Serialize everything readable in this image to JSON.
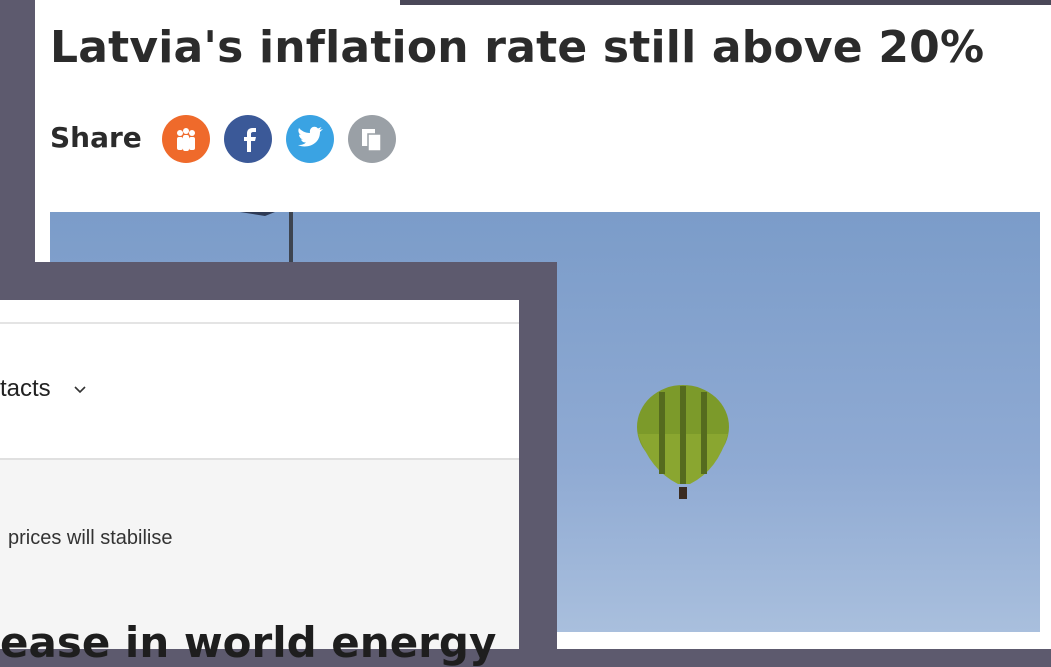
{
  "article": {
    "title": "Latvia's inflation rate still above 20%",
    "share_label": "Share"
  },
  "overlay": {
    "menu_item": "tacts",
    "subheading": "prices will stabilise",
    "headline": "ease in world energy"
  }
}
